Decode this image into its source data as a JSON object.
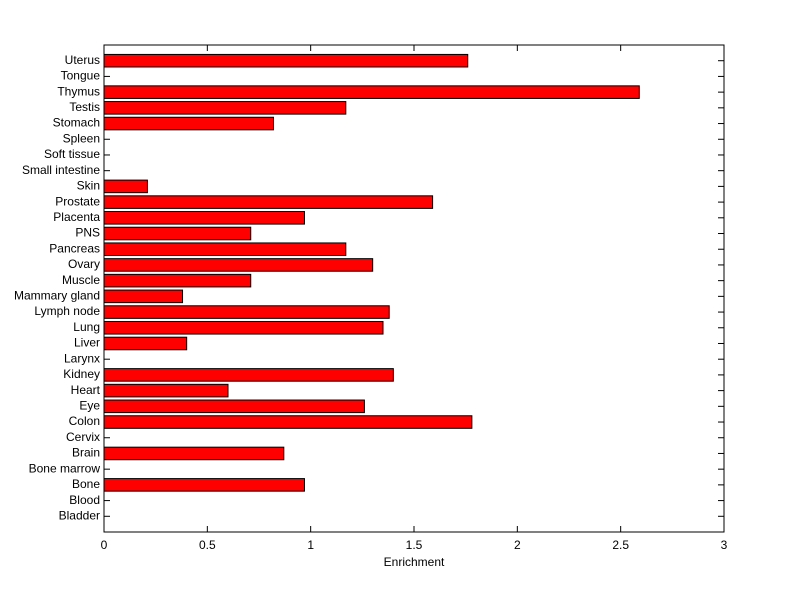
{
  "chart_data": {
    "type": "bar",
    "orientation": "horizontal",
    "xlabel": "Enrichment",
    "categories": [
      "Uterus",
      "Tongue",
      "Thymus",
      "Testis",
      "Stomach",
      "Spleen",
      "Soft tissue",
      "Small intestine",
      "Skin",
      "Prostate",
      "Placenta",
      "PNS",
      "Pancreas",
      "Ovary",
      "Muscle",
      "Mammary gland",
      "Lymph node",
      "Lung",
      "Liver",
      "Larynx",
      "Kidney",
      "Heart",
      "Eye",
      "Colon",
      "Cervix",
      "Brain",
      "Bone marrow",
      "Bone",
      "Blood",
      "Bladder"
    ],
    "values": [
      1.76,
      0,
      2.59,
      1.17,
      0.82,
      0,
      0,
      0,
      0.21,
      1.59,
      0.97,
      0.71,
      1.17,
      1.3,
      0.71,
      0.38,
      1.38,
      1.35,
      0.4,
      0,
      1.4,
      0.6,
      1.26,
      1.78,
      0,
      0.87,
      0,
      0.97,
      0,
      0
    ],
    "color": "#ff0000",
    "xlim": [
      0,
      3
    ],
    "xticks": [
      0,
      0.5,
      1,
      1.5,
      2,
      2.5,
      3
    ]
  }
}
